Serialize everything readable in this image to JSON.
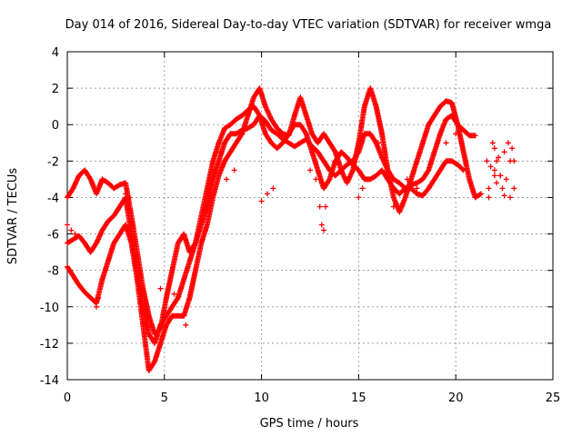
{
  "chart_data": {
    "type": "scatter",
    "title": "Day 014 of 2016, Sidereal Day-to-day VTEC variation (SDTVAR) for receiver wmga",
    "xlabel": "GPS time / hours",
    "ylabel": "SDTVAR / TECUs",
    "xlim": [
      0,
      25
    ],
    "ylim": [
      -14,
      4
    ],
    "x_ticks": [
      "0",
      "5",
      "10",
      "15",
      "20",
      "25"
    ],
    "y_ticks": [
      "-14",
      "-12",
      "-10",
      "-8",
      "-6",
      "-4",
      "-2",
      "0",
      "2",
      "4"
    ],
    "grid": true,
    "marker": "+",
    "color": "#ff0000",
    "series": [
      {
        "name": "series-1",
        "points": [
          [
            0.0,
            -6.5
          ],
          [
            0.3,
            -6.3
          ],
          [
            0.6,
            -6.1
          ],
          [
            0.9,
            -6.5
          ],
          [
            1.2,
            -7.0
          ],
          [
            1.5,
            -6.5
          ],
          [
            1.8,
            -5.8
          ],
          [
            2.1,
            -5.3
          ],
          [
            2.4,
            -5.0
          ],
          [
            2.7,
            -4.5
          ],
          [
            3.0,
            -4.0
          ],
          [
            3.3,
            -6.0
          ],
          [
            3.6,
            -8.0
          ],
          [
            3.9,
            -10.0
          ],
          [
            4.2,
            -11.5
          ],
          [
            4.5,
            -12.0
          ],
          [
            4.8,
            -11.0
          ],
          [
            5.1,
            -10.5
          ],
          [
            5.4,
            -10.0
          ],
          [
            5.7,
            -9.5
          ],
          [
            6.0,
            -8.5
          ],
          [
            6.3,
            -7.5
          ],
          [
            6.6,
            -6.5
          ],
          [
            6.9,
            -5.5
          ],
          [
            7.2,
            -4.5
          ],
          [
            7.5,
            -3.0
          ],
          [
            7.8,
            -2.0
          ],
          [
            8.1,
            -1.0
          ],
          [
            8.4,
            -0.5
          ],
          [
            8.7,
            -0.5
          ],
          [
            9.0,
            -0.3
          ],
          [
            9.3,
            -0.2
          ],
          [
            9.6,
            0.0
          ],
          [
            9.9,
            0.5
          ],
          [
            10.2,
            0.2
          ],
          [
            10.5,
            -0.3
          ],
          [
            10.8,
            -0.5
          ],
          [
            11.1,
            -0.8
          ],
          [
            11.4,
            -1.0
          ],
          [
            11.7,
            -1.2
          ],
          [
            12.0,
            -1.0
          ],
          [
            12.3,
            -0.8
          ],
          [
            12.6,
            -1.2
          ],
          [
            12.9,
            -1.5
          ],
          [
            13.2,
            -2.0
          ],
          [
            13.5,
            -2.5
          ],
          [
            13.8,
            -2.8
          ],
          [
            14.1,
            -2.5
          ],
          [
            14.4,
            -2.2
          ],
          [
            14.7,
            -2.0
          ],
          [
            15.0,
            -1.5
          ],
          [
            15.3,
            -0.5
          ],
          [
            15.6,
            -0.5
          ],
          [
            15.9,
            -1.0
          ],
          [
            16.2,
            -1.8
          ],
          [
            16.5,
            -2.5
          ],
          [
            16.8,
            -3.0
          ],
          [
            17.1,
            -3.2
          ],
          [
            17.4,
            -3.5
          ],
          [
            17.7,
            -3.5
          ],
          [
            18.0,
            -3.8
          ],
          [
            18.3,
            -3.9
          ],
          [
            18.6,
            -3.5
          ],
          [
            18.9,
            -3.0
          ],
          [
            19.2,
            -2.5
          ],
          [
            19.5,
            -2.0
          ],
          [
            19.8,
            -2.0
          ],
          [
            20.1,
            -2.2
          ],
          [
            20.4,
            -2.5
          ]
        ]
      },
      {
        "name": "series-2",
        "points": [
          [
            0.0,
            -7.8
          ],
          [
            0.3,
            -8.3
          ],
          [
            0.6,
            -8.8
          ],
          [
            0.9,
            -9.2
          ],
          [
            1.2,
            -9.5
          ],
          [
            1.5,
            -9.8
          ],
          [
            1.8,
            -8.5
          ],
          [
            2.1,
            -7.5
          ],
          [
            2.4,
            -6.5
          ],
          [
            2.7,
            -6.0
          ],
          [
            3.0,
            -5.5
          ],
          [
            3.3,
            -6.5
          ],
          [
            3.6,
            -8.5
          ],
          [
            3.9,
            -11.0
          ],
          [
            4.2,
            -13.5
          ],
          [
            4.5,
            -13.0
          ],
          [
            4.8,
            -12.0
          ],
          [
            5.1,
            -11.0
          ],
          [
            5.4,
            -10.5
          ],
          [
            5.7,
            -10.5
          ],
          [
            6.0,
            -10.5
          ],
          [
            6.3,
            -9.5
          ],
          [
            6.6,
            -8.0
          ],
          [
            6.9,
            -6.5
          ],
          [
            7.2,
            -5.5
          ],
          [
            7.5,
            -4.0
          ],
          [
            7.8,
            -2.8
          ],
          [
            8.1,
            -2.0
          ],
          [
            8.4,
            -1.5
          ],
          [
            8.7,
            -1.0
          ],
          [
            9.0,
            -0.5
          ],
          [
            9.3,
            0.5
          ],
          [
            9.6,
            1.5
          ],
          [
            9.9,
            2.0
          ],
          [
            10.2,
            1.0
          ],
          [
            10.5,
            0.3
          ],
          [
            10.8,
            -0.2
          ],
          [
            11.1,
            -0.5
          ],
          [
            11.4,
            -0.6
          ],
          [
            11.7,
            0.5
          ],
          [
            12.0,
            1.5
          ],
          [
            12.3,
            0.5
          ],
          [
            12.6,
            -0.5
          ],
          [
            12.9,
            -1.0
          ],
          [
            13.2,
            -0.5
          ],
          [
            13.5,
            -1.0
          ],
          [
            13.8,
            -1.5
          ],
          [
            14.1,
            -2.5
          ],
          [
            14.4,
            -3.2
          ],
          [
            14.7,
            -2.5
          ],
          [
            15.0,
            -1.0
          ],
          [
            15.3,
            1.0
          ],
          [
            15.6,
            2.0
          ],
          [
            15.9,
            1.0
          ],
          [
            16.2,
            -0.5
          ],
          [
            16.5,
            -2.5
          ],
          [
            16.8,
            -4.0
          ],
          [
            17.1,
            -4.8
          ],
          [
            17.4,
            -4.0
          ],
          [
            17.7,
            -3.0
          ],
          [
            18.0,
            -2.0
          ],
          [
            18.3,
            -1.0
          ],
          [
            18.6,
            0.0
          ],
          [
            18.9,
            0.5
          ],
          [
            19.2,
            1.0
          ],
          [
            19.5,
            1.3
          ],
          [
            19.8,
            1.2
          ],
          [
            20.1,
            0.0
          ],
          [
            20.4,
            -1.5
          ],
          [
            20.7,
            -3.0
          ],
          [
            21.0,
            -4.0
          ],
          [
            21.3,
            -3.8
          ]
        ]
      },
      {
        "name": "series-3",
        "points": [
          [
            0.0,
            -4.0
          ],
          [
            0.3,
            -3.5
          ],
          [
            0.6,
            -2.8
          ],
          [
            0.9,
            -2.5
          ],
          [
            1.2,
            -3.0
          ],
          [
            1.5,
            -3.8
          ],
          [
            1.8,
            -3.0
          ],
          [
            2.1,
            -3.2
          ],
          [
            2.4,
            -3.5
          ],
          [
            2.7,
            -3.3
          ],
          [
            3.0,
            -3.2
          ],
          [
            3.3,
            -5.0
          ],
          [
            3.6,
            -7.0
          ],
          [
            3.9,
            -9.0
          ],
          [
            4.2,
            -10.5
          ],
          [
            4.5,
            -11.5
          ],
          [
            4.8,
            -11.2
          ],
          [
            5.1,
            -9.5
          ],
          [
            5.4,
            -8.0
          ],
          [
            5.7,
            -6.5
          ],
          [
            6.0,
            -6.0
          ],
          [
            6.3,
            -7.0
          ],
          [
            6.6,
            -6.5
          ],
          [
            6.9,
            -5.0
          ],
          [
            7.2,
            -3.5
          ],
          [
            7.5,
            -2.0
          ],
          [
            7.8,
            -1.0
          ],
          [
            8.1,
            -0.2
          ],
          [
            8.4,
            0.0
          ],
          [
            8.7,
            0.3
          ],
          [
            9.0,
            0.5
          ],
          [
            9.3,
            0.8
          ],
          [
            9.6,
            1.0
          ],
          [
            9.9,
            0.5
          ],
          [
            10.2,
            -0.5
          ],
          [
            10.5,
            -1.0
          ],
          [
            10.8,
            -1.3
          ],
          [
            11.1,
            -1.0
          ],
          [
            11.4,
            -0.5
          ],
          [
            11.7,
            0.0
          ],
          [
            12.0,
            0.0
          ],
          [
            12.3,
            -0.5
          ],
          [
            12.6,
            -1.5
          ],
          [
            12.9,
            -2.5
          ],
          [
            13.2,
            -3.5
          ],
          [
            13.5,
            -3.0
          ],
          [
            13.8,
            -2.0
          ],
          [
            14.1,
            -1.5
          ],
          [
            14.4,
            -1.8
          ],
          [
            14.7,
            -2.2
          ],
          [
            15.0,
            -2.5
          ],
          [
            15.3,
            -3.0
          ],
          [
            15.6,
            -3.0
          ],
          [
            15.9,
            -2.8
          ],
          [
            16.2,
            -2.5
          ],
          [
            16.5,
            -3.0
          ],
          [
            16.8,
            -3.5
          ],
          [
            17.1,
            -3.8
          ],
          [
            17.4,
            -3.5
          ],
          [
            17.7,
            -3.3
          ],
          [
            18.0,
            -3.2
          ],
          [
            18.3,
            -3.0
          ],
          [
            18.6,
            -2.5
          ],
          [
            18.9,
            -1.5
          ],
          [
            19.2,
            -0.5
          ],
          [
            19.5,
            0.3
          ],
          [
            19.8,
            0.5
          ],
          [
            20.1,
            0.0
          ],
          [
            20.4,
            -0.3
          ],
          [
            20.7,
            -0.6
          ],
          [
            21.0,
            -0.6
          ]
        ]
      },
      {
        "name": "series-4",
        "points": [
          [
            21.9,
            -1.0
          ],
          [
            22.0,
            -1.3
          ],
          [
            22.1,
            -2.0
          ],
          [
            22.3,
            -2.8
          ],
          [
            22.4,
            -3.5
          ],
          [
            22.5,
            -3.9
          ],
          [
            22.8,
            -4.0
          ],
          [
            23.0,
            -3.5
          ],
          [
            22.0,
            -2.5
          ],
          [
            22.1,
            -3.2
          ],
          [
            22.3,
            -2.8
          ],
          [
            22.5,
            -1.5
          ],
          [
            22.7,
            -1.0
          ],
          [
            22.9,
            -1.3
          ],
          [
            23.0,
            -2.0
          ],
          [
            21.6,
            -2.0
          ],
          [
            21.8,
            -2.3
          ],
          [
            22.0,
            -2.8
          ],
          [
            21.7,
            -3.5
          ],
          [
            21.7,
            -4.0
          ],
          [
            22.2,
            -1.8
          ],
          [
            22.6,
            -3.0
          ],
          [
            22.8,
            -2.0
          ]
        ]
      },
      {
        "name": "series-5",
        "points": [
          [
            0.0,
            -5.5
          ],
          [
            0.2,
            -5.8
          ],
          [
            0.4,
            -6.0
          ],
          [
            1.5,
            -10.0
          ],
          [
            1.6,
            -9.5
          ],
          [
            3.0,
            -3.8
          ],
          [
            3.2,
            -4.0
          ],
          [
            4.8,
            -9.0
          ],
          [
            5.1,
            -9.5
          ],
          [
            5.5,
            -9.3
          ],
          [
            6.0,
            -10.5
          ],
          [
            6.1,
            -11.0
          ],
          [
            7.6,
            -2.5
          ],
          [
            7.9,
            -1.5
          ],
          [
            8.2,
            -3.0
          ],
          [
            8.6,
            -2.5
          ],
          [
            10.0,
            -4.2
          ],
          [
            10.3,
            -3.8
          ],
          [
            10.6,
            -3.5
          ],
          [
            12.5,
            -2.5
          ],
          [
            12.8,
            -3.0
          ],
          [
            13.0,
            -4.5
          ],
          [
            13.1,
            -5.5
          ],
          [
            13.2,
            -5.8
          ],
          [
            13.3,
            -4.5
          ],
          [
            15.0,
            -4.0
          ],
          [
            15.2,
            -3.5
          ],
          [
            16.0,
            -1.0
          ],
          [
            16.2,
            -0.5
          ],
          [
            16.8,
            -4.5
          ],
          [
            17.5,
            -3.0
          ],
          [
            18.0,
            -3.5
          ],
          [
            19.5,
            -1.0
          ],
          [
            20.0,
            -0.5
          ],
          [
            20.3,
            -1.0
          ]
        ]
      }
    ]
  }
}
